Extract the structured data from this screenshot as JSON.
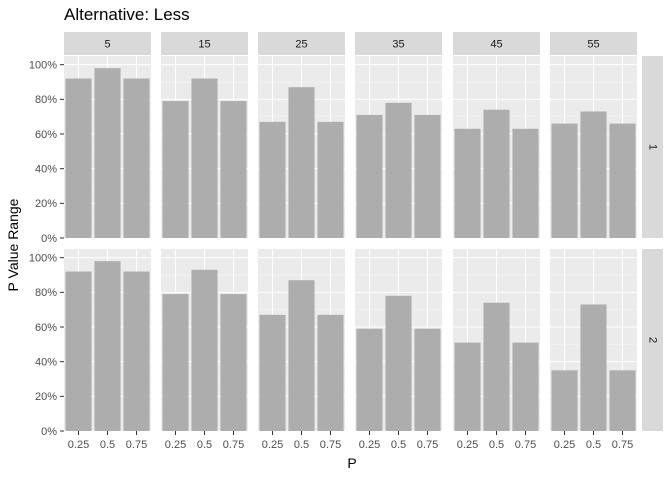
{
  "chart_data": {
    "type": "bar",
    "title": "Alternative: Less",
    "xlabel": "P",
    "ylabel": "P Value Range",
    "categories": [
      "0.25",
      "0.5",
      "0.75"
    ],
    "y_ticks": [
      "0%",
      "20%",
      "40%",
      "60%",
      "80%",
      "100%"
    ],
    "ylim": [
      0,
      1.05
    ],
    "grid": true,
    "facet_columns": [
      "5",
      "15",
      "25",
      "35",
      "45",
      "55"
    ],
    "facet_rows": [
      "1",
      "2"
    ],
    "bar_color": "#adadad",
    "panel_background": "#ebebeb",
    "strip_background": "#d9d9d9",
    "panels": [
      {
        "row": "1",
        "col": "5",
        "values": [
          0.92,
          0.98,
          0.92
        ]
      },
      {
        "row": "1",
        "col": "15",
        "values": [
          0.79,
          0.92,
          0.79
        ]
      },
      {
        "row": "1",
        "col": "25",
        "values": [
          0.67,
          0.87,
          0.67
        ]
      },
      {
        "row": "1",
        "col": "35",
        "values": [
          0.71,
          0.78,
          0.71
        ]
      },
      {
        "row": "1",
        "col": "45",
        "values": [
          0.63,
          0.74,
          0.63
        ]
      },
      {
        "row": "1",
        "col": "55",
        "values": [
          0.66,
          0.73,
          0.66
        ]
      },
      {
        "row": "2",
        "col": "5",
        "values": [
          0.92,
          0.98,
          0.92
        ]
      },
      {
        "row": "2",
        "col": "15",
        "values": [
          0.79,
          0.93,
          0.79
        ]
      },
      {
        "row": "2",
        "col": "25",
        "values": [
          0.67,
          0.87,
          0.67
        ]
      },
      {
        "row": "2",
        "col": "35",
        "values": [
          0.59,
          0.78,
          0.59
        ]
      },
      {
        "row": "2",
        "col": "45",
        "values": [
          0.51,
          0.74,
          0.51
        ]
      },
      {
        "row": "2",
        "col": "55",
        "values": [
          0.35,
          0.73,
          0.35
        ]
      }
    ]
  }
}
